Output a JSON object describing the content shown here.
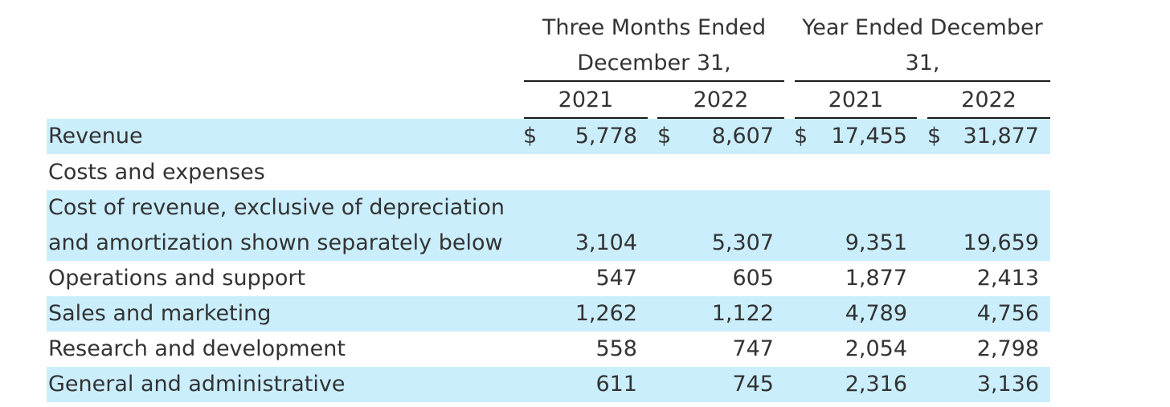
{
  "headers": {
    "group1": [
      "Three Months Ended",
      "December 31,"
    ],
    "group2": [
      "Year Ended December",
      "31,"
    ],
    "years": [
      "2021",
      "2022",
      "2021",
      "2022"
    ]
  },
  "currency_symbol": "$",
  "rows": [
    {
      "label": "Revenue",
      "values": [
        "5,778",
        "8,607",
        "17,455",
        "31,877"
      ]
    },
    {
      "label": "Costs and expenses",
      "values": [
        "",
        "",
        "",
        ""
      ]
    },
    {
      "label": [
        "Cost of revenue, exclusive of depreciation",
        "and amortization shown separately below"
      ],
      "values": [
        "3,104",
        "5,307",
        "9,351",
        "19,659"
      ]
    },
    {
      "label": "Operations and support",
      "values": [
        "547",
        "605",
        "1,877",
        "2,413"
      ]
    },
    {
      "label": "Sales and marketing",
      "values": [
        "1,262",
        "1,122",
        "4,789",
        "4,756"
      ]
    },
    {
      "label": "Research and development",
      "values": [
        "558",
        "747",
        "2,054",
        "2,798"
      ]
    },
    {
      "label": "General and administrative",
      "values": [
        "611",
        "745",
        "2,316",
        "3,136"
      ]
    }
  ]
}
